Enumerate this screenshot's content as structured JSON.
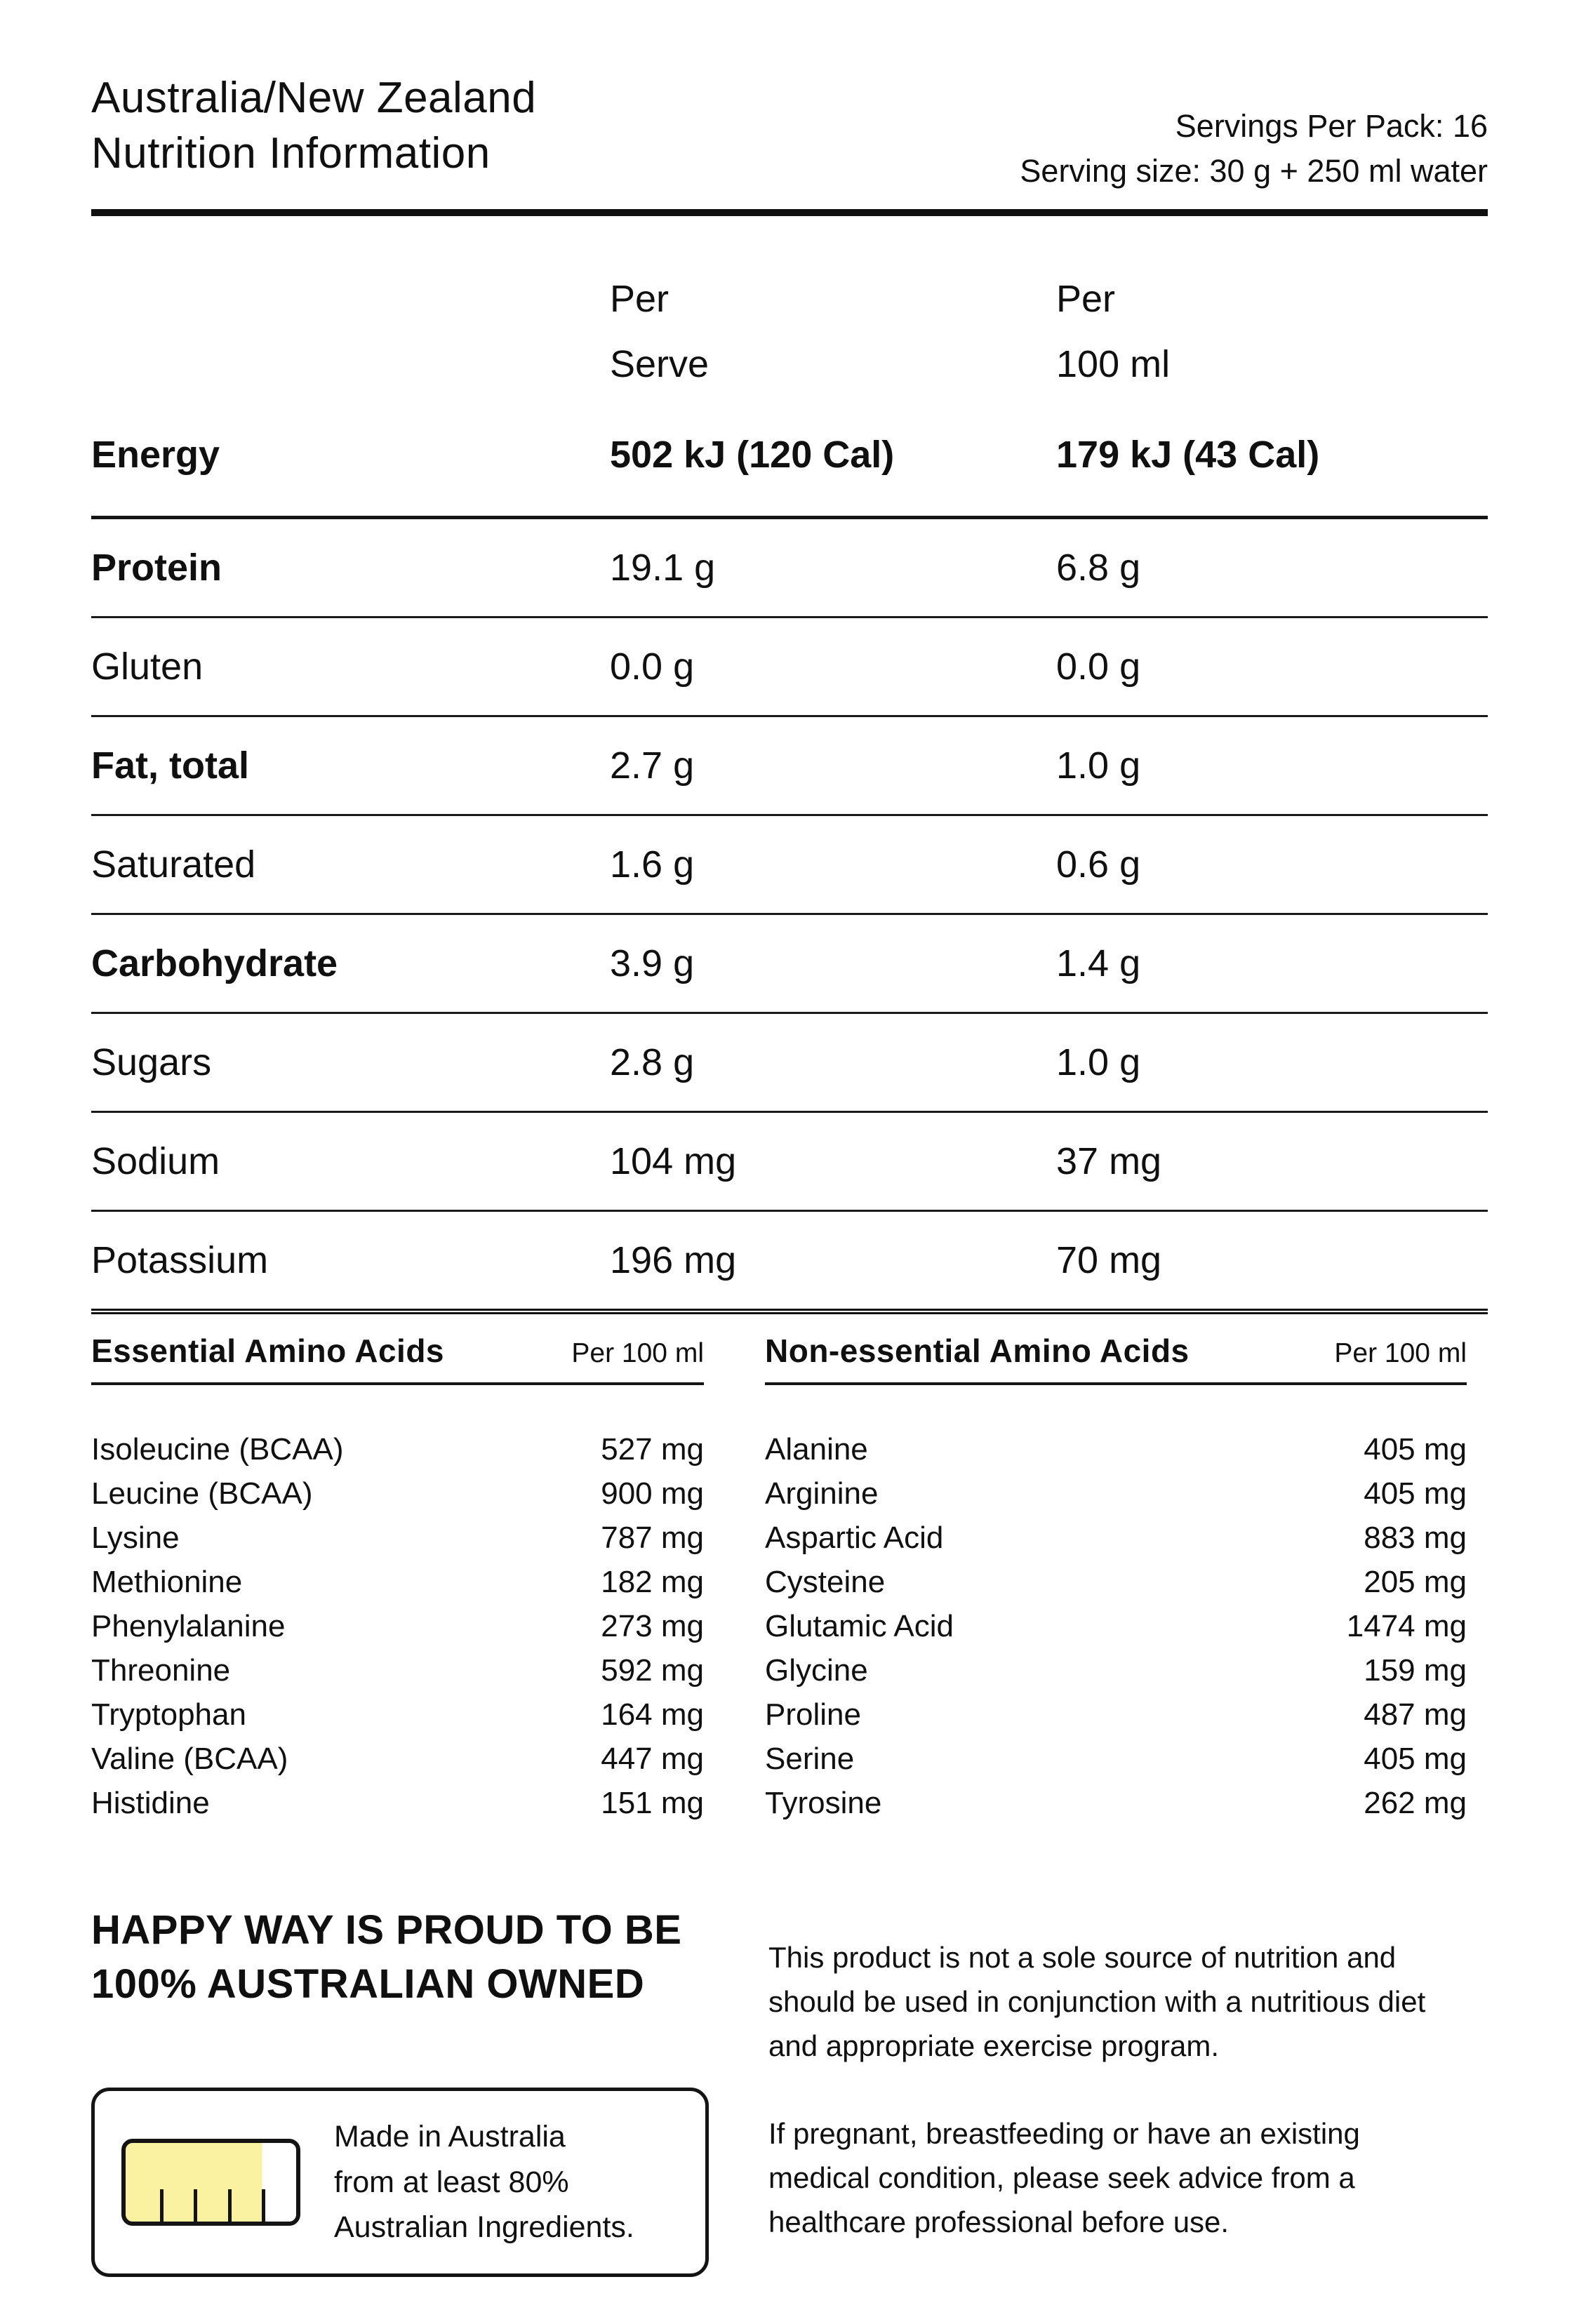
{
  "header": {
    "title_line1": "Australia/New Zealand",
    "title_line2": "Nutrition Information",
    "servings_per_pack": "Servings Per Pack: 16",
    "serving_size": "Serving size: 30 g + 250 ml water"
  },
  "nutrition_table": {
    "col_per_serve_line1": "Per",
    "col_per_serve_line2": "Serve",
    "col_per_100ml_line1": "Per",
    "col_per_100ml_line2": "100 ml",
    "rows": [
      {
        "label": "Energy",
        "per_serve": "502 kJ (120 Cal)",
        "per_100ml": "179 kJ (43 Cal)"
      },
      {
        "label": "Protein",
        "per_serve": "19.1 g",
        "per_100ml": "6.8 g"
      },
      {
        "label": "Gluten",
        "per_serve": "0.0 g",
        "per_100ml": "0.0 g"
      },
      {
        "label": "Fat, total",
        "per_serve": "2.7 g",
        "per_100ml": "1.0 g"
      },
      {
        "label": "Saturated",
        "per_serve": "1.6 g",
        "per_100ml": "0.6 g"
      },
      {
        "label": "Carbohydrate",
        "per_serve": "3.9 g",
        "per_100ml": "1.4 g"
      },
      {
        "label": "Sugars",
        "per_serve": "2.8 g",
        "per_100ml": "1.0 g"
      },
      {
        "label": "Sodium",
        "per_serve": "104 mg",
        "per_100ml": "37 mg"
      },
      {
        "label": "Potassium",
        "per_serve": "196 mg",
        "per_100ml": "70 mg"
      }
    ]
  },
  "essential_amino_acids": {
    "title": "Essential Amino Acids",
    "unit_label": "Per 100 ml",
    "rows": [
      {
        "name": "Isoleucine (BCAA)",
        "value": "527 mg"
      },
      {
        "name": "Leucine (BCAA)",
        "value": "900 mg"
      },
      {
        "name": "Lysine",
        "value": "787 mg"
      },
      {
        "name": "Methionine",
        "value": "182 mg"
      },
      {
        "name": "Phenylalanine",
        "value": "273 mg"
      },
      {
        "name": "Threonine",
        "value": "592 mg"
      },
      {
        "name": "Tryptophan",
        "value": "164 mg"
      },
      {
        "name": "Valine (BCAA)",
        "value": "447 mg"
      },
      {
        "name": "Histidine",
        "value": "151 mg"
      }
    ]
  },
  "non_essential_amino_acids": {
    "title": "Non-essential Amino Acids",
    "unit_label": "Per 100 ml",
    "rows": [
      {
        "name": "Alanine",
        "value": "405 mg"
      },
      {
        "name": "Arginine",
        "value": "405 mg"
      },
      {
        "name": "Aspartic Acid",
        "value": "883 mg"
      },
      {
        "name": "Cysteine",
        "value": "205 mg"
      },
      {
        "name": "Glutamic Acid",
        "value": "1474 mg"
      },
      {
        "name": "Glycine",
        "value": "159 mg"
      },
      {
        "name": "Proline",
        "value": "487 mg"
      },
      {
        "name": "Serine",
        "value": "405 mg"
      },
      {
        "name": "Tyrosine",
        "value": "262 mg"
      }
    ]
  },
  "footer": {
    "headline_line1": "HAPPY WAY IS PROUD TO BE",
    "headline_line2": "100% AUSTRALIAN OWNED",
    "made_in_australia": {
      "line1": "Made in Australia",
      "line2": "from at least 80%",
      "line3": "Australian Ingredients.",
      "gauge_fill_percent": 80,
      "gauge_fill_color": "#faf1a1"
    },
    "disclaimer1": "This product is not a sole source of nutrition and should be used in conjunction with a nutritious diet and appropriate exercise program.",
    "disclaimer2": "If pregnant, breastfeeding or have an existing medical condition, please seek advice from a healthcare professional before use."
  }
}
